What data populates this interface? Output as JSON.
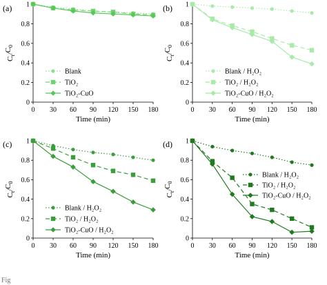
{
  "caption": "Fig",
  "chart_data": [
    {
      "type": "line",
      "panel": "(a)",
      "xlabel": "Time (min)",
      "ylabel": "C",
      "ylabel_sub": "t",
      "ylabel_den": "C",
      "ylabel_den_sub": "0",
      "xlim": [
        0,
        180
      ],
      "ylim": [
        0,
        1
      ],
      "xticks": [
        0,
        30,
        60,
        90,
        120,
        150,
        180
      ],
      "yticks": [
        0,
        0.2,
        0.4,
        0.6,
        0.8,
        1
      ],
      "ytick_labels": [
        "0",
        "0.2",
        "0.4",
        "0.6",
        "0.8",
        "1"
      ],
      "legend_position": "center-left",
      "x": [
        0,
        30,
        60,
        90,
        120,
        150,
        180
      ],
      "series": [
        {
          "name": "Blank",
          "values": [
            1.0,
            0.97,
            0.95,
            0.93,
            0.92,
            0.91,
            0.9
          ],
          "style": "dotted",
          "marker": "circle",
          "color": "#8ee28e"
        },
        {
          "name": "TiO₂",
          "values": [
            1.0,
            0.96,
            0.94,
            0.93,
            0.92,
            0.9,
            0.89
          ],
          "style": "dashed",
          "marker": "square",
          "color": "#6fd46f"
        },
        {
          "name": "TiO₂-CuO",
          "values": [
            1.0,
            0.96,
            0.93,
            0.91,
            0.9,
            0.89,
            0.88
          ],
          "style": "solid",
          "marker": "diamond",
          "color": "#55c855"
        }
      ]
    },
    {
      "type": "line",
      "panel": "(b)",
      "xlabel": "Time (min)",
      "ylabel": "C",
      "ylabel_sub": "t",
      "ylabel_den": "C",
      "ylabel_den_sub": "0",
      "xlim": [
        0,
        180
      ],
      "ylim": [
        0,
        1
      ],
      "xticks": [
        0,
        30,
        60,
        90,
        120,
        150,
        180
      ],
      "yticks": [
        0,
        0.2,
        0.4,
        0.6,
        0.8,
        1
      ],
      "ytick_labels": [
        "0",
        "0.2",
        "0.4",
        "0.6",
        "0.8",
        "1"
      ],
      "legend_position": "center-left",
      "x": [
        0,
        30,
        60,
        90,
        120,
        150,
        180
      ],
      "series": [
        {
          "name": "Blank / H₂O₂",
          "values": [
            1.0,
            0.98,
            0.97,
            0.96,
            0.95,
            0.93,
            0.91
          ],
          "style": "dotted",
          "marker": "circle",
          "color": "#a8eaa8"
        },
        {
          "name": "TiO₂ / H₂O₂",
          "values": [
            1.0,
            0.85,
            0.78,
            0.72,
            0.65,
            0.58,
            0.53
          ],
          "style": "dashed",
          "marker": "square",
          "color": "#a8eaa8"
        },
        {
          "name": "TiO₂-CuO / H₂O₂",
          "values": [
            1.0,
            0.84,
            0.76,
            0.69,
            0.62,
            0.46,
            0.39
          ],
          "style": "solid",
          "marker": "diamond",
          "color": "#a8eaa8"
        }
      ]
    },
    {
      "type": "line",
      "panel": "(c)",
      "xlabel": "Time (min)",
      "ylabel": "C",
      "ylabel_sub": "t",
      "ylabel_den": "C",
      "ylabel_den_sub": "0",
      "xlim": [
        0,
        180
      ],
      "ylim": [
        0,
        1
      ],
      "xticks": [
        0,
        30,
        60,
        90,
        120,
        150,
        180
      ],
      "yticks": [
        0,
        0.2,
        0.4,
        0.6,
        0.8,
        1
      ],
      "ytick_labels": [
        "0",
        "0.2",
        "0.4",
        "0.6",
        "0.8",
        "1"
      ],
      "legend_position": "bottom-left",
      "x": [
        0,
        30,
        60,
        90,
        120,
        150,
        180
      ],
      "series": [
        {
          "name": "Blank / H₂O₂",
          "values": [
            1.0,
            0.95,
            0.91,
            0.88,
            0.86,
            0.83,
            0.8
          ],
          "style": "dotted",
          "marker": "circle",
          "color": "#3a9e3a"
        },
        {
          "name": "TiO₂ / H₂O₂",
          "values": [
            1.0,
            0.92,
            0.83,
            0.75,
            0.69,
            0.65,
            0.59
          ],
          "style": "dashed",
          "marker": "square",
          "color": "#3a9e3a"
        },
        {
          "name": "TiO₂-CuO / H₂O₂",
          "values": [
            1.0,
            0.84,
            0.73,
            0.58,
            0.48,
            0.37,
            0.29
          ],
          "style": "solid",
          "marker": "diamond",
          "color": "#3a9e3a"
        }
      ]
    },
    {
      "type": "line",
      "panel": "(d)",
      "xlabel": "Time (min)",
      "ylabel": "C",
      "ylabel_sub": "t",
      "ylabel_den": "C",
      "ylabel_den_sub": "0",
      "xlim": [
        0,
        180
      ],
      "ylim": [
        0,
        1
      ],
      "xticks": [
        0,
        30,
        60,
        90,
        120,
        150,
        180
      ],
      "yticks": [
        0,
        0.2,
        0.4,
        0.6,
        0.8,
        1
      ],
      "ytick_labels": [
        "0",
        "0.2",
        "0.4",
        "0.6",
        "0.8",
        "1"
      ],
      "legend_position": "top-right",
      "x": [
        0,
        30,
        60,
        90,
        120,
        150,
        180
      ],
      "series": [
        {
          "name": "Blank / H₂O₂",
          "values": [
            1.0,
            0.94,
            0.9,
            0.87,
            0.83,
            0.78,
            0.75
          ],
          "style": "dotted",
          "marker": "circle",
          "color": "#1f7a1f"
        },
        {
          "name": "TiO₂ / H₂O₂",
          "values": [
            1.0,
            0.79,
            0.62,
            0.35,
            0.29,
            0.2,
            0.11
          ],
          "style": "dashed",
          "marker": "square",
          "color": "#1f7a1f"
        },
        {
          "name": "TiO₂-CuO / H₂O₂",
          "values": [
            1.0,
            0.76,
            0.45,
            0.22,
            0.17,
            0.06,
            0.07
          ],
          "style": "solid",
          "marker": "diamond",
          "color": "#1f7a1f"
        }
      ]
    }
  ]
}
